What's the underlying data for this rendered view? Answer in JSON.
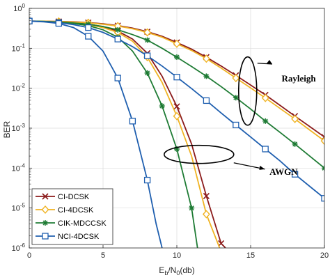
{
  "chart_data": {
    "type": "line",
    "xlabel": "E",
    "xlabel_sub1": "b",
    "xlabel_mid": "/N",
    "xlabel_sub2": "0",
    "xlabel_tail": "(db)",
    "ylabel": "BER",
    "xlim": [
      0,
      20
    ],
    "ylim": [
      1e-06,
      1
    ],
    "yscale": "log",
    "grid": true,
    "legend_position": "bottom-left",
    "x_ticks": [
      "0",
      "5",
      "10",
      "15",
      "20"
    ],
    "y_ticks": [
      {
        "base": "10",
        "exp": "0"
      },
      {
        "base": "10",
        "exp": "-1"
      },
      {
        "base": "10",
        "exp": "-2"
      },
      {
        "base": "10",
        "exp": "-3"
      },
      {
        "base": "10",
        "exp": "-4"
      },
      {
        "base": "10",
        "exp": "-5"
      },
      {
        "base": "10",
        "exp": "-6"
      }
    ],
    "series": [
      {
        "name": "CI-DCSK",
        "color": "#8B1A1A",
        "marker": "x",
        "awgn": [
          [
            0,
            0.48
          ],
          [
            1,
            0.475
          ],
          [
            2,
            0.46
          ],
          [
            3,
            0.435
          ],
          [
            4,
            0.4
          ],
          [
            5,
            0.35
          ],
          [
            6,
            0.27
          ],
          [
            7,
            0.17
          ],
          [
            8,
            0.075
          ],
          [
            9,
            0.02
          ],
          [
            10,
            0.0035
          ],
          [
            11,
            0.0004
          ],
          [
            12,
            2e-05
          ],
          [
            13,
            1.3e-06
          ],
          [
            13.3,
            1e-06
          ]
        ],
        "rayleigh": [
          [
            0,
            0.48
          ],
          [
            1,
            0.475
          ],
          [
            2,
            0.47
          ],
          [
            3,
            0.46
          ],
          [
            4,
            0.44
          ],
          [
            5,
            0.41
          ],
          [
            6,
            0.37
          ],
          [
            7,
            0.32
          ],
          [
            8,
            0.26
          ],
          [
            9,
            0.2
          ],
          [
            10,
            0.14
          ],
          [
            11,
            0.095
          ],
          [
            12,
            0.06
          ],
          [
            13,
            0.036
          ],
          [
            14,
            0.021
          ],
          [
            15,
            0.012
          ],
          [
            16,
            0.0068
          ],
          [
            17,
            0.0037
          ],
          [
            18,
            0.002
          ],
          [
            19,
            0.0011
          ],
          [
            20,
            0.0006
          ]
        ],
        "awgn_markers": [
          0,
          2,
          4,
          6,
          8,
          10,
          12,
          13
        ],
        "rayleigh_markers": [
          0,
          2,
          4,
          6,
          8,
          10,
          12,
          14,
          16,
          18,
          20
        ]
      },
      {
        "name": "CI-4DCSK",
        "color": "#F0B323",
        "marker": "diamond",
        "awgn": [
          [
            0,
            0.48
          ],
          [
            1,
            0.475
          ],
          [
            2,
            0.46
          ],
          [
            3,
            0.43
          ],
          [
            4,
            0.39
          ],
          [
            5,
            0.33
          ],
          [
            6,
            0.25
          ],
          [
            7,
            0.15
          ],
          [
            8,
            0.06
          ],
          [
            9,
            0.014
          ],
          [
            10,
            0.002
          ],
          [
            11,
            0.0002
          ],
          [
            12,
            7e-06
          ],
          [
            12.9,
            1e-06
          ]
        ],
        "rayleigh": [
          [
            0,
            0.48
          ],
          [
            1,
            0.475
          ],
          [
            2,
            0.47
          ],
          [
            3,
            0.455
          ],
          [
            4,
            0.435
          ],
          [
            5,
            0.4
          ],
          [
            6,
            0.36
          ],
          [
            7,
            0.31
          ],
          [
            8,
            0.25
          ],
          [
            9,
            0.19
          ],
          [
            10,
            0.13
          ],
          [
            11,
            0.088
          ],
          [
            12,
            0.055
          ],
          [
            13,
            0.032
          ],
          [
            14,
            0.018
          ],
          [
            15,
            0.0102
          ],
          [
            16,
            0.0057
          ],
          [
            17,
            0.0031
          ],
          [
            18,
            0.0017
          ],
          [
            19,
            0.0009
          ],
          [
            20,
            0.00048
          ]
        ],
        "awgn_markers": [
          0,
          2,
          4,
          6,
          8,
          10,
          12
        ],
        "rayleigh_markers": [
          0,
          2,
          4,
          6,
          8,
          10,
          12,
          14,
          16,
          18,
          20
        ]
      },
      {
        "name": "CIK-MDCCSK",
        "color": "#1E7B34",
        "marker": "star",
        "awgn": [
          [
            0,
            0.48
          ],
          [
            1,
            0.47
          ],
          [
            2,
            0.45
          ],
          [
            3,
            0.42
          ],
          [
            4,
            0.37
          ],
          [
            5,
            0.29
          ],
          [
            6,
            0.19
          ],
          [
            7,
            0.085
          ],
          [
            8,
            0.024
          ],
          [
            9,
            0.0036
          ],
          [
            10,
            0.0003
          ],
          [
            11,
            1e-05
          ],
          [
            11.4,
            1e-06
          ]
        ],
        "rayleigh": [
          [
            0,
            0.48
          ],
          [
            1,
            0.47
          ],
          [
            2,
            0.455
          ],
          [
            3,
            0.43
          ],
          [
            4,
            0.4
          ],
          [
            5,
            0.35
          ],
          [
            6,
            0.29
          ],
          [
            7,
            0.22
          ],
          [
            8,
            0.16
          ],
          [
            9,
            0.1
          ],
          [
            10,
            0.06
          ],
          [
            11,
            0.035
          ],
          [
            12,
            0.02
          ],
          [
            13,
            0.011
          ],
          [
            14,
            0.0058
          ],
          [
            15,
            0.003
          ],
          [
            16,
            0.0015
          ],
          [
            17,
            0.00078
          ],
          [
            18,
            0.0004
          ],
          [
            19,
            0.0002
          ],
          [
            20,
            0.0001
          ]
        ],
        "awgn_markers": [
          0,
          2,
          4,
          6,
          8,
          9,
          10,
          11
        ],
        "rayleigh_markers": [
          0,
          2,
          4,
          6,
          8,
          10,
          12,
          14,
          16,
          18,
          20
        ]
      },
      {
        "name": "NCI-4DCSK",
        "color": "#1F5FAF",
        "marker": "square",
        "awgn": [
          [
            0,
            0.48
          ],
          [
            1,
            0.46
          ],
          [
            2,
            0.42
          ],
          [
            3,
            0.33
          ],
          [
            4,
            0.2
          ],
          [
            5,
            0.085
          ],
          [
            6,
            0.018
          ],
          [
            7,
            0.0015
          ],
          [
            8,
            5e-05
          ],
          [
            8.6,
            4e-06
          ],
          [
            9.0,
            1e-06
          ]
        ],
        "rayleigh": [
          [
            0,
            0.48
          ],
          [
            1,
            0.465
          ],
          [
            2,
            0.44
          ],
          [
            3,
            0.39
          ],
          [
            4,
            0.33
          ],
          [
            5,
            0.25
          ],
          [
            6,
            0.17
          ],
          [
            7,
            0.11
          ],
          [
            8,
            0.065
          ],
          [
            9,
            0.036
          ],
          [
            10,
            0.019
          ],
          [
            11,
            0.0098
          ],
          [
            12,
            0.0049
          ],
          [
            13,
            0.0024
          ],
          [
            14,
            0.0012
          ],
          [
            15,
            0.0006
          ],
          [
            16,
            0.0003
          ],
          [
            17,
            0.00015
          ],
          [
            18,
            7e-05
          ],
          [
            19,
            3.5e-05
          ],
          [
            20,
            1.75e-05
          ]
        ],
        "awgn_markers": [
          0,
          2,
          4,
          6,
          7,
          8
        ],
        "rayleigh_markers": [
          0,
          2,
          4,
          6,
          8,
          10,
          12,
          14,
          16,
          18,
          20
        ]
      }
    ],
    "annotations": [
      {
        "text": "Rayleigh",
        "ellipse_center": [
          14.8,
          0.0085
        ],
        "label_at": [
          17.5,
          0.018
        ]
      },
      {
        "text": "AWGN",
        "ellipse_center": [
          11.5,
          0.00022
        ],
        "label_at": [
          17.0,
          8e-05
        ]
      }
    ]
  }
}
